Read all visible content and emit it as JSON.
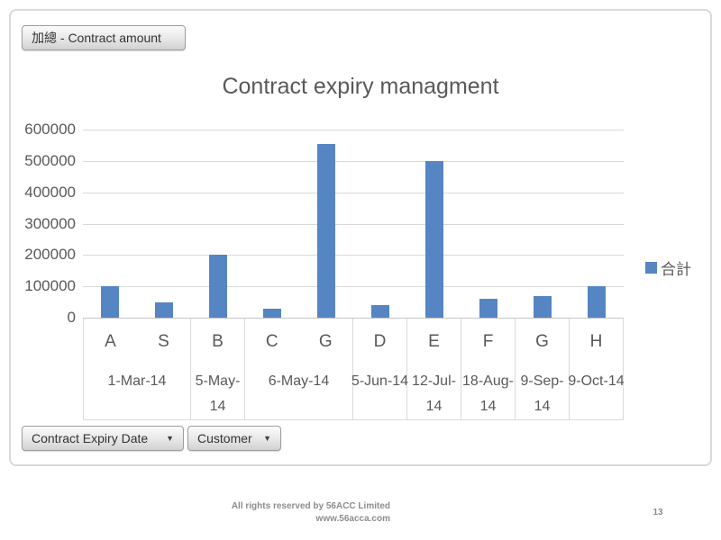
{
  "pivot_chart": {
    "value_field_button": "加總 - Contract amount",
    "legend": {
      "series_label": "合計",
      "marker_color": "#5585C2"
    },
    "axis_field_buttons": [
      {
        "label": "Contract Expiry Date",
        "dropdown_glyph": "▼"
      },
      {
        "label": "Customer",
        "dropdown_glyph": "▼"
      }
    ]
  },
  "chart_data": {
    "type": "bar",
    "title": "Contract expiry managment",
    "categories": [
      "A",
      "S",
      "B",
      "C",
      "G",
      "D",
      "E",
      "F",
      "G",
      "H"
    ],
    "series": [
      {
        "name": "合計",
        "color": "#5585C2",
        "values": [
          100000,
          50000,
          200000,
          30000,
          555000,
          40000,
          500000,
          60000,
          70000,
          100000
        ]
      }
    ],
    "groups": [
      {
        "date": "1-Mar-14",
        "date_lines": [
          "1-Mar-14"
        ],
        "customers": [
          "A",
          "S"
        ]
      },
      {
        "date": "5-May-14",
        "date_lines": [
          "5-May-",
          "14"
        ],
        "customers": [
          "B"
        ]
      },
      {
        "date": "6-May-14",
        "date_lines": [
          "6-May-14"
        ],
        "customers": [
          "C",
          "G"
        ]
      },
      {
        "date": "5-Jun-14",
        "date_lines": [
          "5-Jun-14"
        ],
        "customers": [
          "D"
        ]
      },
      {
        "date": "12-Jul-14",
        "date_lines": [
          "12-Jul-",
          "14"
        ],
        "customers": [
          "E"
        ]
      },
      {
        "date": "18-Aug-14",
        "date_lines": [
          "18-Aug-",
          "14"
        ],
        "customers": [
          "F"
        ]
      },
      {
        "date": "9-Sep-14",
        "date_lines": [
          "9-Sep-",
          "14"
        ],
        "customers": [
          "G"
        ]
      },
      {
        "date": "9-Oct-14",
        "date_lines": [
          "9-Oct-14"
        ],
        "customers": [
          "H"
        ]
      }
    ],
    "ylim": [
      0,
      600000
    ],
    "ytick_interval": 100000,
    "grid": true,
    "legend_position": "right",
    "gridline_color": "#D9D9D9"
  },
  "footer": {
    "line1": "All rights reserved by 56ACC Limited",
    "line2": "www.56acca.com",
    "page_number": "13"
  }
}
